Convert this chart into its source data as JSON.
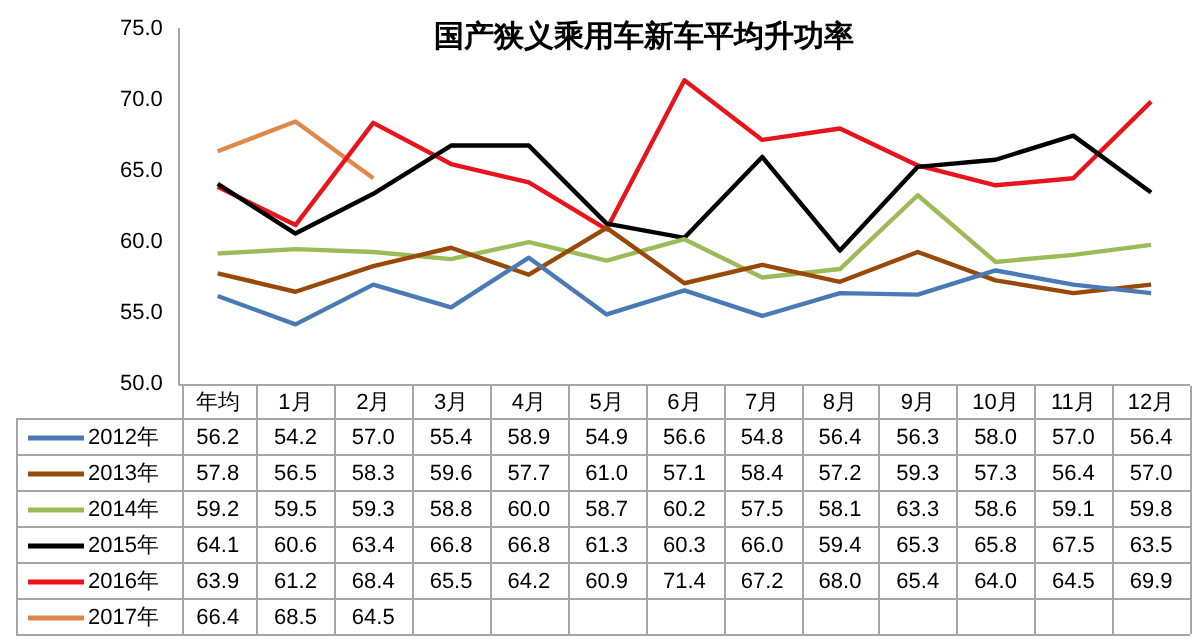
{
  "chart_data": {
    "type": "line",
    "title": "国产狭义乘用车新车平均升功率",
    "categories": [
      "年均",
      "1月",
      "2月",
      "3月",
      "4月",
      "5月",
      "6月",
      "7月",
      "8月",
      "9月",
      "10月",
      "11月",
      "12月"
    ],
    "ylim": [
      50,
      75
    ],
    "yticks": [
      {
        "value": 50,
        "label": "50.0"
      },
      {
        "value": 55,
        "label": "55.0"
      },
      {
        "value": 60,
        "label": "60.0"
      },
      {
        "value": 65,
        "label": "65.0"
      },
      {
        "value": 70,
        "label": "70.0"
      },
      {
        "value": 75,
        "label": "75.0"
      }
    ],
    "grid": false,
    "legend": "bottom",
    "marker": "none",
    "series": [
      {
        "name": "2012年",
        "color": "#4a7ab5",
        "values": [
          56.2,
          54.2,
          57.0,
          55.4,
          58.9,
          54.9,
          56.6,
          54.8,
          56.4,
          56.3,
          58.0,
          57.0,
          56.4
        ],
        "value_labels": [
          "56.2",
          "54.2",
          "57.0",
          "55.4",
          "58.9",
          "54.9",
          "56.6",
          "54.8",
          "56.4",
          "56.3",
          "58.0",
          "57.0",
          "56.4"
        ]
      },
      {
        "name": "2013年",
        "color": "#984807",
        "values": [
          57.8,
          56.5,
          58.3,
          59.6,
          57.7,
          61.0,
          57.1,
          58.4,
          57.2,
          59.3,
          57.3,
          56.4,
          57.0
        ],
        "value_labels": [
          "57.8",
          "56.5",
          "58.3",
          "59.6",
          "57.7",
          "61.0",
          "57.1",
          "58.4",
          "57.2",
          "59.3",
          "57.3",
          "56.4",
          "57.0"
        ]
      },
      {
        "name": "2014年",
        "color": "#9bbb59",
        "values": [
          59.2,
          59.5,
          59.3,
          58.8,
          60.0,
          58.7,
          60.2,
          57.5,
          58.1,
          63.3,
          58.6,
          59.1,
          59.8
        ],
        "value_labels": [
          "59.2",
          "59.5",
          "59.3",
          "58.8",
          "60.0",
          "58.7",
          "60.2",
          "57.5",
          "58.1",
          "63.3",
          "58.6",
          "59.1",
          "59.8"
        ]
      },
      {
        "name": "2015年",
        "color": "#000000",
        "values": [
          64.1,
          60.6,
          63.4,
          66.8,
          66.8,
          61.3,
          60.3,
          66.0,
          59.4,
          65.3,
          65.8,
          67.5,
          63.5
        ],
        "value_labels": [
          "64.1",
          "60.6",
          "63.4",
          "66.8",
          "66.8",
          "61.3",
          "60.3",
          "66.0",
          "59.4",
          "65.3",
          "65.8",
          "67.5",
          "63.5"
        ]
      },
      {
        "name": "2016年",
        "color": "#e8141b",
        "values": [
          63.9,
          61.2,
          68.4,
          65.5,
          64.2,
          60.9,
          71.4,
          67.2,
          68.0,
          65.4,
          64.0,
          64.5,
          69.9
        ],
        "value_labels": [
          "63.9",
          "61.2",
          "68.4",
          "65.5",
          "64.2",
          "60.9",
          "71.4",
          "67.2",
          "68.0",
          "65.4",
          "64.0",
          "64.5",
          "69.9"
        ]
      },
      {
        "name": "2017年",
        "color": "#e0874a",
        "values": [
          66.4,
          68.5,
          64.5,
          null,
          null,
          null,
          null,
          null,
          null,
          null,
          null,
          null,
          null
        ],
        "value_labels": [
          "66.4",
          "68.5",
          "64.5",
          null,
          null,
          null,
          null,
          null,
          null,
          null,
          null,
          null,
          null
        ]
      }
    ]
  }
}
